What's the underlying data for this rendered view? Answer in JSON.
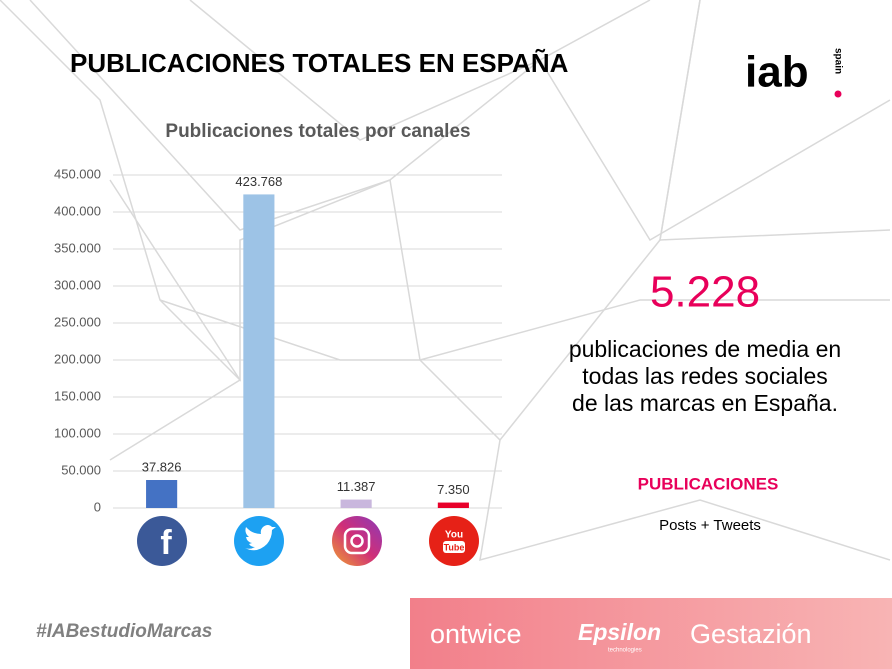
{
  "header": {
    "title": "PUBLICACIONES TOTALES EN ESPAÑA",
    "logo": "iab",
    "logo_sub": "spain"
  },
  "chart_data": {
    "type": "bar",
    "title": "Publicaciones totales por canales",
    "categories": [
      null,
      null,
      null,
      null
    ],
    "values": [
      37826,
      423768,
      11387,
      7350
    ],
    "value_labels": [
      "37.826",
      "423.768",
      "11.387",
      "7.350"
    ],
    "colors": [
      "#4472c4",
      "#9dc3e6",
      "#c9b7dd",
      "#e8002a"
    ],
    "ylim": [
      0,
      450000
    ],
    "yticks": [
      0,
      {
        "value": 50000,
        "label": "50.000"
      },
      {
        "value": 100000,
        "label": "100.000"
      },
      {
        "value": 150000,
        "label": "150.000"
      },
      {
        "value": 200000,
        "label": "200.000"
      },
      {
        "value": 250000,
        "label": "250.000"
      },
      {
        "value": 300000,
        "label": "300.000"
      },
      {
        "value": 350000,
        "label": "350.000"
      },
      {
        "value": 400000,
        "label": "400.000"
      },
      {
        "value": 450000,
        "label": "450.000"
      }
    ],
    "grid": true
  },
  "highlight": {
    "number": "5.228",
    "lines": [
      "publicaciones de media en",
      "todas las redes sociales",
      "de las marcas en España."
    ],
    "label": "PUBLICACIONES",
    "note": "Posts + Tweets"
  },
  "footer": {
    "hashtag": "#IABestudioMarcas",
    "brands": [
      "ontwice",
      "Epsilon",
      "technologies",
      "Gestazión"
    ]
  }
}
